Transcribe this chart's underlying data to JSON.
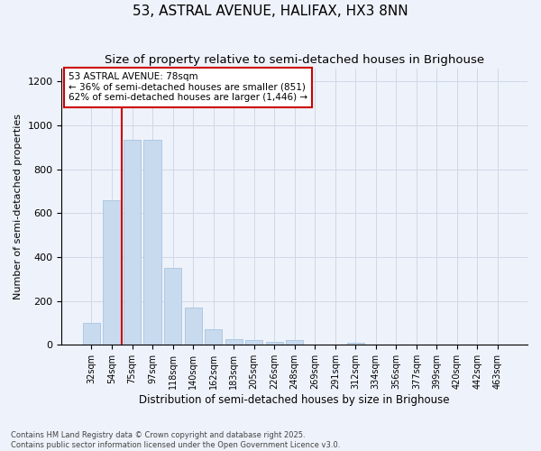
{
  "title": "53, ASTRAL AVENUE, HALIFAX, HX3 8NN",
  "subtitle": "Size of property relative to semi-detached houses in Brighouse",
  "xlabel": "Distribution of semi-detached houses by size in Brighouse",
  "ylabel": "Number of semi-detached properties",
  "categories": [
    "32sqm",
    "54sqm",
    "75sqm",
    "97sqm",
    "118sqm",
    "140sqm",
    "162sqm",
    "183sqm",
    "205sqm",
    "226sqm",
    "248sqm",
    "269sqm",
    "291sqm",
    "312sqm",
    "334sqm",
    "356sqm",
    "377sqm",
    "399sqm",
    "420sqm",
    "442sqm",
    "463sqm"
  ],
  "values": [
    100,
    660,
    935,
    935,
    350,
    170,
    70,
    28,
    22,
    14,
    20,
    0,
    0,
    8,
    0,
    0,
    0,
    0,
    0,
    0,
    0
  ],
  "bar_color": "#c8daee",
  "bar_edge_color": "#a8c4e0",
  "grid_color": "#d0d8e8",
  "vline_color": "#cc0000",
  "vline_x_index": 2,
  "annotation_text": "53 ASTRAL AVENUE: 78sqm\n← 36% of semi-detached houses are smaller (851)\n62% of semi-detached houses are larger (1,446) →",
  "annotation_box_color": "#ffffff",
  "annotation_box_edge": "#cc0000",
  "ylim": [
    0,
    1260
  ],
  "yticks": [
    0,
    200,
    400,
    600,
    800,
    1000,
    1200
  ],
  "footer": "Contains HM Land Registry data © Crown copyright and database right 2025.\nContains public sector information licensed under the Open Government Licence v3.0.",
  "background_color": "#eef2fa",
  "plot_background": "#eef2fa",
  "title_fontsize": 11,
  "subtitle_fontsize": 9.5,
  "annot_fontsize": 7.5
}
